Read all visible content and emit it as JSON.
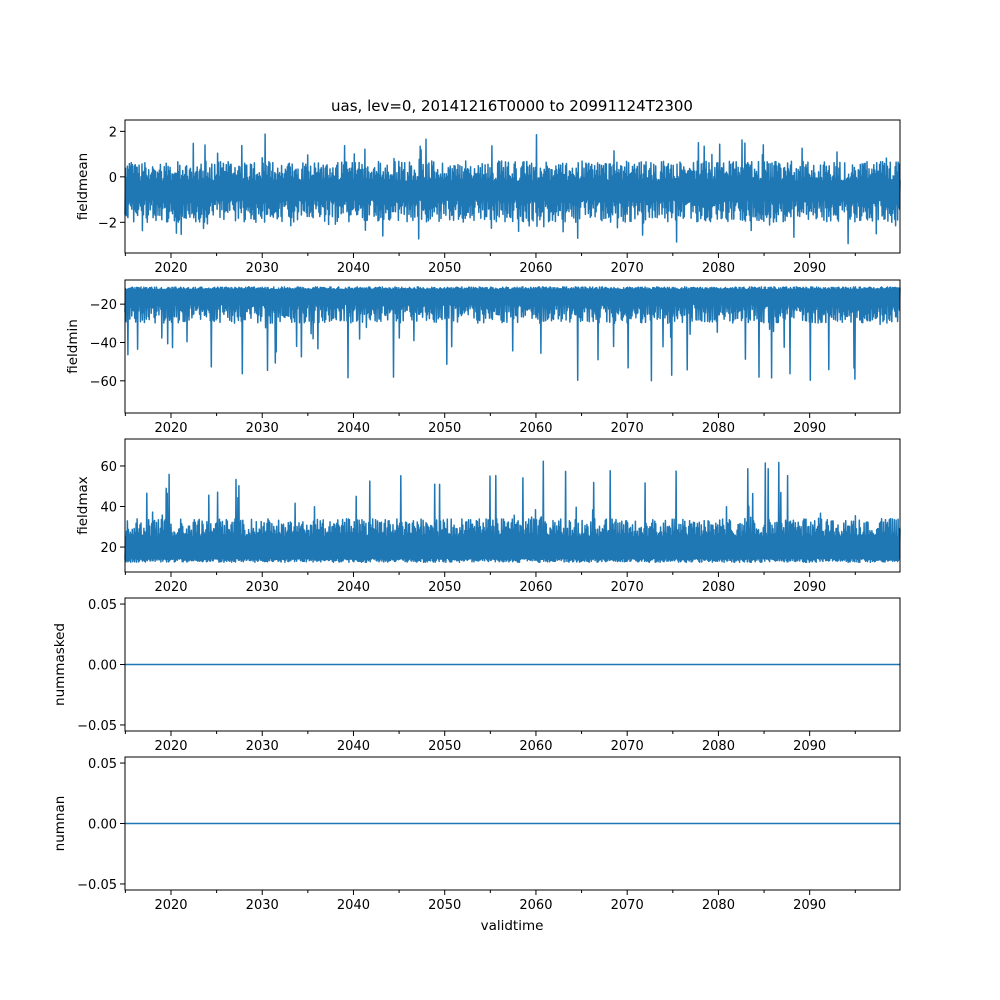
{
  "chart_data": {
    "type": "line",
    "title": "uas, lev=0, 20141216T0000 to 20991124T2300",
    "xlabel": "validtime",
    "xlim": [
      2014.96,
      2099.9
    ],
    "x_major_ticks": [
      2020,
      2030,
      2040,
      2050,
      2060,
      2070,
      2080,
      2090
    ],
    "x_minor_ticks": [
      2015,
      2025,
      2035,
      2045,
      2055,
      2065,
      2075,
      2085,
      2095
    ],
    "x_tick_labels": [
      "2020",
      "2030",
      "2040",
      "2050",
      "2060",
      "2070",
      "2080",
      "2090"
    ],
    "color": "#1f77b4",
    "panels": [
      {
        "ylabel": "fieldmean",
        "ylim": [
          -3.35,
          2.5
        ],
        "yticks": [
          -2,
          0,
          2
        ],
        "ytick_labels": [
          "−2",
          "0",
          "2"
        ],
        "series_summary": {
          "min": -3.2,
          "max": 2.2,
          "typical_low": -1.8,
          "typical_high": 0.8,
          "center": -0.4
        }
      },
      {
        "ylabel": "fieldmin",
        "ylim": [
          -76.8,
          -7.4
        ],
        "yticks": [
          -60,
          -40,
          -20
        ],
        "ytick_labels": [
          "−60",
          "−40",
          "−20"
        ],
        "series_summary": {
          "min": -73,
          "max": -10,
          "typical_low": -30,
          "typical_high": -11,
          "spike_low": -65
        }
      },
      {
        "ylabel": "fieldmax",
        "ylim": [
          7.7,
          73.3
        ],
        "yticks": [
          20,
          40,
          60
        ],
        "ytick_labels": [
          "20",
          "40",
          "60"
        ],
        "series_summary": {
          "min": 11,
          "max": 70,
          "typical_low": 14,
          "typical_high": 33,
          "spike_high": 65
        }
      },
      {
        "ylabel": "nummasked",
        "ylim": [
          -0.055,
          0.055
        ],
        "yticks": [
          -0.05,
          0,
          0.05
        ],
        "ytick_labels": [
          "−0.05",
          "0.00",
          "0.05"
        ],
        "series_summary": {
          "constant": 0
        }
      },
      {
        "ylabel": "numnan",
        "ylim": [
          -0.055,
          0.055
        ],
        "yticks": [
          -0.05,
          0,
          0.05
        ],
        "ytick_labels": [
          "−0.05",
          "0.00",
          "0.05"
        ],
        "series_summary": {
          "constant": 0
        }
      }
    ]
  }
}
